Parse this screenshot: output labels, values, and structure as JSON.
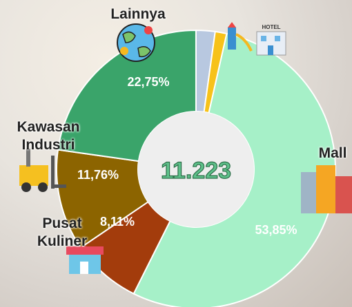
{
  "chart_data": {
    "type": "donut",
    "categories": [
      "Mall",
      "Pusat Kuliner",
      "Kawasan Industri",
      "Lainnya",
      null,
      null
    ],
    "values": [
      53.85,
      8.11,
      11.76,
      22.75,
      2.2,
      1.33
    ],
    "value_labels": [
      "53,85%",
      "8,11%",
      "11,76%",
      "22,75%",
      null,
      null
    ],
    "colors": [
      "#a6f0c8",
      "#a33c0c",
      "#8c6400",
      "#3aa46a",
      "#b8c8e0",
      "#f7c21a"
    ],
    "center_text": "11.223"
  }
}
